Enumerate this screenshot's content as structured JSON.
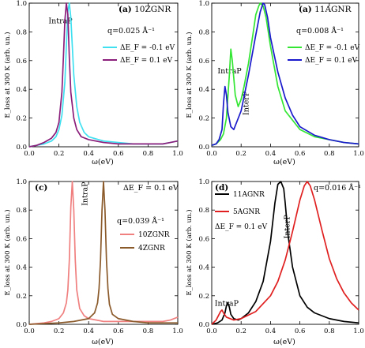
{
  "chart_data": [
    {
      "type": "line",
      "panel_label": "(a)",
      "title": "10ZGNR",
      "xlabel": "ω(eV)",
      "ylabel": "E_loss at 300 K (arb. un.)",
      "xlim": [
        0.0,
        1.0
      ],
      "ylim": [
        0.0,
        1.0
      ],
      "xticks": [
        "0.0",
        "0.2",
        "0.4",
        "0.6",
        "0.8",
        "1.0"
      ],
      "yticks": [
        "0.0",
        "0.2",
        "0.4",
        "0.6",
        "0.8",
        "1.0"
      ],
      "q_text": "q=0.025 Å⁻¹",
      "annotations": [
        {
          "text": "IntraP",
          "x": 0.13,
          "y": 0.86
        }
      ],
      "legend_position": "right",
      "series": [
        {
          "name": "ΔE_F = -0.1 eV",
          "color": "#40e0f0",
          "x": [
            0.0,
            0.05,
            0.1,
            0.15,
            0.18,
            0.2,
            0.22,
            0.24,
            0.25,
            0.26,
            0.27,
            0.28,
            0.29,
            0.3,
            0.32,
            0.34,
            0.37,
            0.4,
            0.5,
            0.6,
            0.7,
            0.8,
            0.9,
            0.95,
            1.0
          ],
          "y": [
            0.0,
            0.01,
            0.02,
            0.04,
            0.07,
            0.12,
            0.22,
            0.45,
            0.7,
            0.94,
            1.0,
            0.9,
            0.7,
            0.5,
            0.28,
            0.17,
            0.1,
            0.07,
            0.04,
            0.03,
            0.02,
            0.02,
            0.02,
            0.03,
            0.04
          ]
        },
        {
          "name": "ΔE_F = 0.1 eV",
          "color": "#8b1e7a",
          "x": [
            0.0,
            0.05,
            0.1,
            0.15,
            0.18,
            0.2,
            0.22,
            0.23,
            0.24,
            0.25,
            0.26,
            0.27,
            0.28,
            0.3,
            0.32,
            0.35,
            0.4,
            0.5,
            0.6,
            0.7,
            0.8,
            0.9,
            0.95,
            1.0
          ],
          "y": [
            0.0,
            0.01,
            0.03,
            0.06,
            0.1,
            0.17,
            0.38,
            0.62,
            0.88,
            1.0,
            0.92,
            0.62,
            0.38,
            0.2,
            0.12,
            0.07,
            0.05,
            0.03,
            0.02,
            0.02,
            0.02,
            0.02,
            0.03,
            0.04
          ]
        }
      ]
    },
    {
      "type": "line",
      "panel_label": "(a)",
      "title": "11AGNR",
      "xlabel": "ω(eV)",
      "ylabel": "E_loss at 300 K (arb. un.)",
      "xlim": [
        0.0,
        1.0
      ],
      "ylim": [
        0.0,
        1.0
      ],
      "xticks": [
        "0.0",
        "0.2",
        "0.4",
        "0.6",
        "0.8",
        "1.0"
      ],
      "yticks": [
        "0.0",
        "0.2",
        "0.4",
        "0.6",
        "0.8",
        "1.0"
      ],
      "q_text": "q=0.008 Å⁻¹",
      "annotations": [
        {
          "text": "IntraP",
          "x": 0.04,
          "y": 0.51
        },
        {
          "text": "InterP",
          "x": 0.25,
          "y": 0.22
        }
      ],
      "legend_position": "right",
      "series": [
        {
          "name": "ΔE_F = -0.1 eV",
          "color": "#33e633",
          "x": [
            0.0,
            0.03,
            0.06,
            0.08,
            0.1,
            0.12,
            0.13,
            0.14,
            0.16,
            0.18,
            0.2,
            0.22,
            0.25,
            0.28,
            0.3,
            0.32,
            0.33,
            0.35,
            0.37,
            0.4,
            0.45,
            0.5,
            0.6,
            0.7,
            0.8,
            0.9,
            1.0
          ],
          "y": [
            0.01,
            0.02,
            0.05,
            0.09,
            0.2,
            0.5,
            0.68,
            0.6,
            0.36,
            0.28,
            0.33,
            0.42,
            0.58,
            0.78,
            0.92,
            0.98,
            1.0,
            0.98,
            0.9,
            0.7,
            0.42,
            0.25,
            0.12,
            0.07,
            0.05,
            0.03,
            0.02
          ]
        },
        {
          "name": "ΔE_F = 0.1 eV",
          "color": "#1a1acc",
          "x": [
            0.0,
            0.03,
            0.05,
            0.07,
            0.08,
            0.09,
            0.1,
            0.11,
            0.13,
            0.15,
            0.2,
            0.25,
            0.3,
            0.33,
            0.35,
            0.36,
            0.38,
            0.4,
            0.45,
            0.5,
            0.55,
            0.6,
            0.7,
            0.8,
            0.9,
            1.0
          ],
          "y": [
            0.01,
            0.02,
            0.05,
            0.12,
            0.3,
            0.42,
            0.36,
            0.24,
            0.14,
            0.12,
            0.25,
            0.5,
            0.78,
            0.94,
            1.0,
            0.99,
            0.9,
            0.76,
            0.52,
            0.34,
            0.22,
            0.14,
            0.08,
            0.05,
            0.03,
            0.02
          ]
        }
      ]
    },
    {
      "type": "line",
      "panel_label": "(c)",
      "title": "",
      "xlabel": "ω(eV)",
      "ylabel": "E_loss at 300 K (arb. un.)",
      "xlim": [
        0.0,
        1.0
      ],
      "ylim": [
        0.0,
        1.0
      ],
      "xticks": [
        "0.0",
        "0.2",
        "0.4",
        "0.6",
        "0.8",
        "1.0"
      ],
      "yticks": [
        "0.0",
        "0.2",
        "0.4",
        "0.6",
        "0.8",
        "1.0"
      ],
      "header_text": "ΔE_F = 0.1 eV",
      "q_text": "q=0.039 Å⁻¹",
      "annotations": [
        {
          "text": "IntraP",
          "x": 0.39,
          "y": 0.83
        }
      ],
      "legend_position": "right",
      "series": [
        {
          "name": "10ZGNR",
          "color": "#f08080",
          "x": [
            0.0,
            0.1,
            0.15,
            0.2,
            0.23,
            0.25,
            0.26,
            0.27,
            0.28,
            0.29,
            0.3,
            0.31,
            0.32,
            0.34,
            0.37,
            0.4,
            0.5,
            0.6,
            0.7,
            0.8,
            0.9,
            0.95,
            1.0
          ],
          "y": [
            0.0,
            0.01,
            0.02,
            0.04,
            0.08,
            0.15,
            0.24,
            0.45,
            0.82,
            1.0,
            0.8,
            0.45,
            0.24,
            0.11,
            0.06,
            0.04,
            0.02,
            0.02,
            0.02,
            0.02,
            0.02,
            0.03,
            0.05
          ]
        },
        {
          "name": "4ZGNR",
          "color": "#8b5a2b",
          "x": [
            0.0,
            0.2,
            0.3,
            0.4,
            0.44,
            0.46,
            0.47,
            0.48,
            0.49,
            0.5,
            0.51,
            0.52,
            0.53,
            0.54,
            0.56,
            0.6,
            0.7,
            0.8,
            0.9,
            1.0
          ],
          "y": [
            0.0,
            0.01,
            0.02,
            0.04,
            0.08,
            0.15,
            0.25,
            0.45,
            0.8,
            1.0,
            0.8,
            0.45,
            0.25,
            0.14,
            0.07,
            0.04,
            0.02,
            0.01,
            0.01,
            0.01
          ]
        }
      ]
    },
    {
      "type": "line",
      "panel_label": "(d)",
      "title": "",
      "xlabel": "ω(eV)",
      "ylabel": "E_loss at 300 K (arb. un.)",
      "xlim": [
        0.0,
        1.0
      ],
      "ylim": [
        0.0,
        1.0
      ],
      "xticks": [
        "0.0",
        "0.2",
        "0.4",
        "0.6",
        "0.8",
        "1.0"
      ],
      "yticks": [
        "0.0",
        "0.2",
        "0.4",
        "0.6",
        "0.8",
        "1.0"
      ],
      "legend_note": "ΔE_F = 0.1 eV",
      "q_text": "q=0.016 Å⁻¹",
      "annotations": [
        {
          "text": "IntraP",
          "x": 0.02,
          "y": 0.13
        },
        {
          "text": "InterP",
          "x": 0.53,
          "y": 0.6
        }
      ],
      "legend_position": "top-left",
      "series": [
        {
          "name": "11AGNR",
          "color": "#000000",
          "x": [
            0.0,
            0.04,
            0.07,
            0.09,
            0.1,
            0.11,
            0.12,
            0.13,
            0.15,
            0.18,
            0.2,
            0.25,
            0.3,
            0.35,
            0.4,
            0.43,
            0.45,
            0.47,
            0.49,
            0.5,
            0.52,
            0.55,
            0.6,
            0.65,
            0.7,
            0.8,
            0.9,
            1.0
          ],
          "y": [
            0.0,
            0.01,
            0.03,
            0.08,
            0.13,
            0.15,
            0.12,
            0.07,
            0.04,
            0.03,
            0.04,
            0.08,
            0.16,
            0.3,
            0.58,
            0.85,
            0.98,
            1.0,
            0.95,
            0.85,
            0.62,
            0.4,
            0.2,
            0.12,
            0.08,
            0.04,
            0.02,
            0.01
          ]
        },
        {
          "name": "5AGNR",
          "color": "#e02020",
          "x": [
            0.0,
            0.03,
            0.05,
            0.06,
            0.07,
            0.08,
            0.1,
            0.15,
            0.2,
            0.3,
            0.4,
            0.45,
            0.5,
            0.55,
            0.6,
            0.63,
            0.65,
            0.67,
            0.7,
            0.75,
            0.8,
            0.85,
            0.9,
            0.95,
            1.0
          ],
          "y": [
            0.0,
            0.03,
            0.07,
            0.09,
            0.1,
            0.08,
            0.05,
            0.03,
            0.04,
            0.09,
            0.2,
            0.3,
            0.45,
            0.65,
            0.87,
            0.97,
            1.0,
            0.97,
            0.87,
            0.66,
            0.46,
            0.32,
            0.22,
            0.15,
            0.1
          ]
        }
      ]
    }
  ]
}
